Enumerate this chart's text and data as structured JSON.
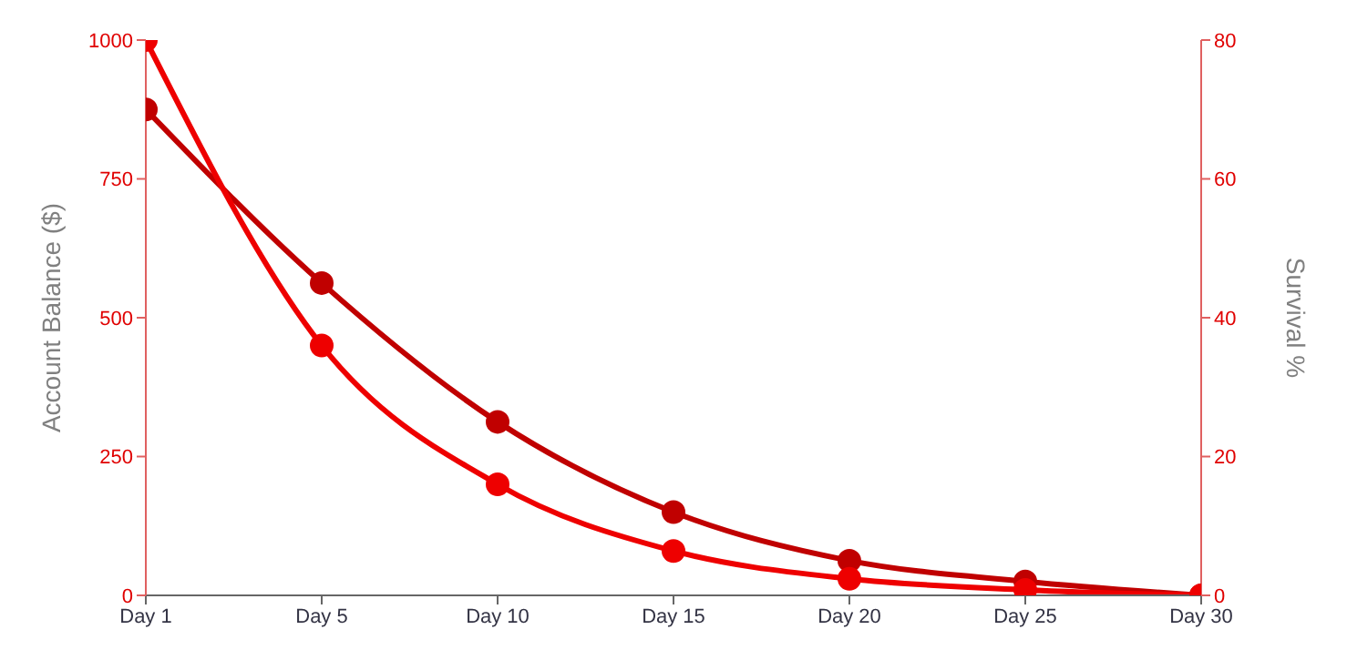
{
  "chart_data": {
    "type": "line",
    "categories": [
      "Day 1",
      "Day 5",
      "Day 10",
      "Day 15",
      "Day 20",
      "Day 25",
      "Day 30"
    ],
    "ylabel": "Account Balance ($)",
    "y2label": "Survival %",
    "ylim": [
      0,
      1000
    ],
    "yticks": [
      0,
      250,
      500,
      750,
      1000
    ],
    "y2lim": [
      0,
      80
    ],
    "y2ticks": [
      0,
      20,
      40,
      60,
      80
    ],
    "marker": "circle",
    "grid": false,
    "legend": false,
    "series": [
      {
        "color": "#ee0000",
        "values": [
          1000,
          450,
          200,
          80,
          30,
          10,
          0
        ]
      },
      {
        "color": "#c00000",
        "axis": "y2",
        "values": [
          70,
          45,
          25,
          12,
          5,
          2,
          0
        ]
      }
    ]
  }
}
